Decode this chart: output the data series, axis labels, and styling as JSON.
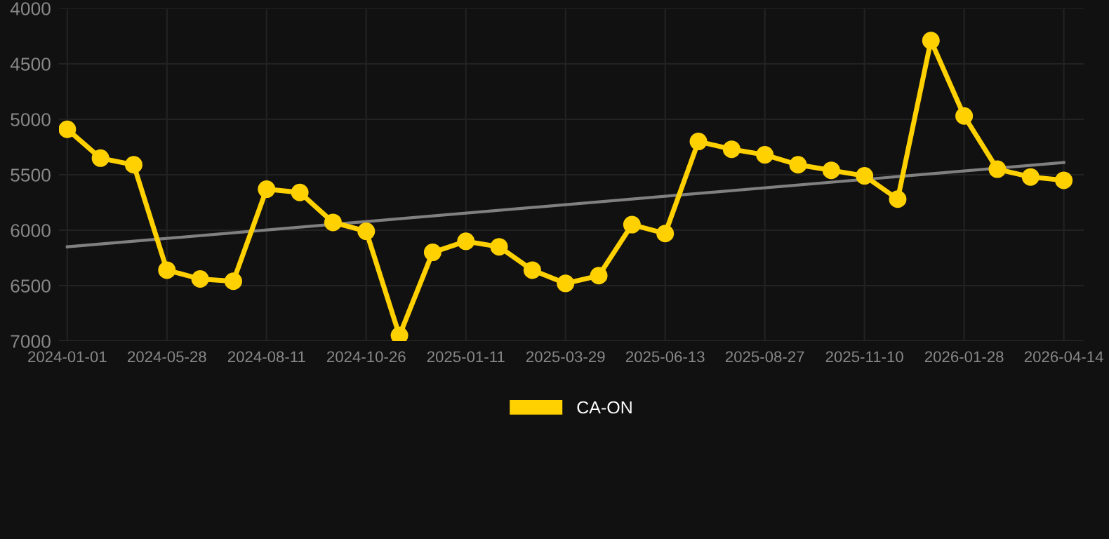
{
  "chart_data": {
    "type": "line",
    "categories": [
      "2024-01-01",
      null,
      null,
      "2024-05-28",
      null,
      null,
      "2024-08-11",
      null,
      null,
      "2024-10-26",
      null,
      null,
      "2025-01-11",
      null,
      null,
      "2025-03-29",
      null,
      null,
      "2025-06-13",
      null,
      null,
      "2025-08-27",
      null,
      null,
      "2025-11-10",
      null,
      null,
      "2026-01-28",
      null,
      null,
      "2026-04-14"
    ],
    "series": [
      {
        "name": "CA-ON",
        "color": "#ffd100",
        "marker": "circle",
        "values": [
          5090,
          5350,
          5410,
          6360,
          6440,
          6460,
          5630,
          5660,
          5930,
          6010,
          6950,
          6200,
          6100,
          6150,
          6360,
          6480,
          6410,
          5950,
          6030,
          5200,
          5270,
          5320,
          5410,
          5460,
          5510,
          5720,
          4290,
          4970,
          5450,
          5520,
          5550
        ]
      },
      {
        "type": "line",
        "color": "#808080",
        "marker": "none",
        "values": [
          6150,
          null,
          null,
          null,
          null,
          null,
          null,
          null,
          null,
          null,
          null,
          null,
          null,
          null,
          null,
          null,
          null,
          null,
          null,
          null,
          null,
          null,
          null,
          null,
          null,
          null,
          null,
          null,
          null,
          null,
          5390
        ]
      }
    ],
    "ylim": [
      7000,
      4000
    ],
    "yticks": [
      4000,
      4500,
      5000,
      5500,
      6000,
      6500,
      7000
    ],
    "grid": true,
    "legend": "bottom",
    "line_style": "solid"
  }
}
